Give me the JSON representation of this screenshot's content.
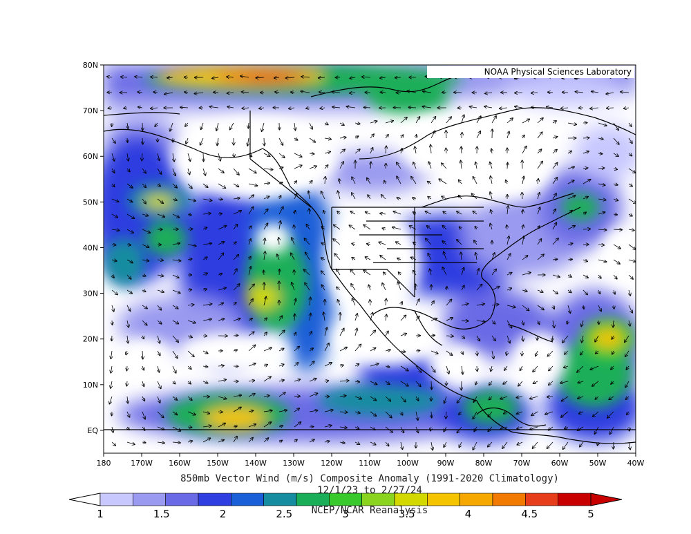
{
  "map": {
    "credit": "NOAA Physical Sciences Laboratory",
    "title": "850mb Vector Wind (m/s) Composite Anomaly (1991-2020 Climatology)",
    "subtitle": "12/1/23  to 2/27/24",
    "source": "NCEP/NCAR Reanalysis",
    "lat_labels": [
      "80N",
      "70N",
      "60N",
      "50N",
      "40N",
      "30N",
      "20N",
      "10N",
      "EQ"
    ],
    "lon_labels": [
      "180",
      "170W",
      "160W",
      "150W",
      "140W",
      "130W",
      "120W",
      "110W",
      "100W",
      "90W",
      "80W",
      "70W",
      "60W",
      "50W",
      "40W"
    ],
    "extent": {
      "lon": [
        -180,
        -40
      ],
      "lat": [
        -5,
        80
      ]
    },
    "shaded_field": "wind anomaly magnitude",
    "vectors": "wind anomaly arrows"
  },
  "colorbar": {
    "labels": [
      "1",
      "1.5",
      "2",
      "2.5",
      "3",
      "3.5",
      "4",
      "4.5",
      "5"
    ],
    "colors": [
      "#c8c8ff",
      "#9a9af0",
      "#6a6ae6",
      "#2e3ee0",
      "#1a5fd8",
      "#158ca0",
      "#1bae59",
      "#38c92c",
      "#8ad41f",
      "#d2d800",
      "#f4c400",
      "#f6a800",
      "#f27a00",
      "#e83d1a",
      "#c90000"
    ]
  }
}
